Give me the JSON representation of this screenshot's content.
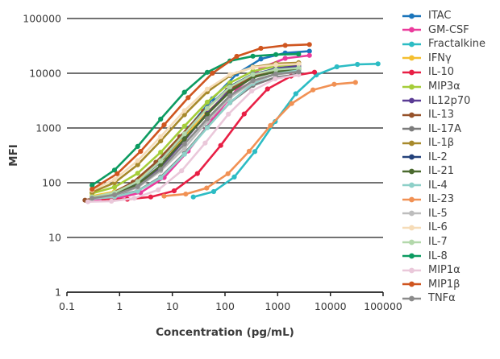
{
  "chart_data": {
    "type": "line",
    "title": "",
    "xlabel": "Concentration (pg/mL)",
    "ylabel": "MFI",
    "x_scale": "log",
    "y_scale": "log",
    "xlim": [
      0.1,
      100000
    ],
    "ylim": [
      1,
      100000
    ],
    "x_ticks": [
      0.1,
      1,
      10,
      100,
      1000,
      10000,
      100000
    ],
    "y_ticks": [
      1,
      10,
      100,
      1000,
      10000,
      100000
    ],
    "grid": "horizontal-only",
    "legend_position": "right",
    "marker": "circle",
    "text_color": "#3a3a3a",
    "axis_color": "#1f1f1f",
    "series": [
      {
        "name": "ITAC",
        "color": "#1b75bb",
        "x": [
          0.3,
          0.9,
          2.5,
          7,
          20,
          58,
          167,
          480,
          1390,
          4000
        ],
        "y": [
          54,
          67,
          115,
          295,
          990,
          3430,
          9700,
          18200,
          23500,
          25300
        ]
      },
      {
        "name": "GM-CSF",
        "color": "#eb3b9c",
        "x": [
          0.3,
          0.9,
          2.5,
          7,
          20,
          58,
          167,
          480,
          1390,
          4000
        ],
        "y": [
          49,
          52,
          66,
          124,
          380,
          1430,
          5030,
          12400,
          18700,
          21200
        ]
      },
      {
        "name": "Fractalkine",
        "color": "#2cbcc4",
        "x": [
          25,
          61,
          150,
          368,
          900,
          2210,
          5420,
          13290,
          32600,
          80000
        ],
        "y": [
          55,
          69,
          127,
          371,
          1310,
          4220,
          9300,
          13090,
          14490,
          14870
        ]
      },
      {
        "name": "IFNγ",
        "color": "#f4bf30",
        "x": [
          0.3,
          0.8,
          2.2,
          6,
          17,
          46,
          124,
          339,
          925,
          2500
        ],
        "y": [
          57,
          69,
          110,
          240,
          690,
          1950,
          4710,
          8510,
          11230,
          12400
        ]
      },
      {
        "name": "IL-10",
        "color": "#e81f45",
        "x": [
          0.5,
          1.4,
          3.9,
          10.8,
          30,
          83,
          231,
          643,
          1790,
          5000
        ],
        "y": [
          50,
          50,
          55,
          71,
          147,
          480,
          1800,
          5170,
          8840,
          10450
        ]
      },
      {
        "name": "MIP3α",
        "color": "#a5cd39",
        "x": [
          0.3,
          0.8,
          2.2,
          6,
          17,
          46,
          124,
          339,
          925,
          2500
        ],
        "y": [
          64,
          83,
          149,
          360,
          1080,
          2970,
          6680,
          10900,
          13500,
          14500
        ]
      },
      {
        "name": "IL12p70",
        "color": "#5a3b94",
        "x": [
          0.3,
          0.8,
          2.2,
          6,
          17,
          46,
          124,
          339,
          925,
          2500
        ],
        "y": [
          53,
          61,
          89,
          195,
          595,
          1850,
          4930,
          9330,
          12300,
          13500
        ]
      },
      {
        "name": "IL-13",
        "color": "#96522a",
        "x": [
          0.22,
          0.6,
          1.8,
          4.9,
          13.9,
          39,
          111,
          313,
          883,
          2500
        ],
        "y": [
          48,
          59,
          102,
          236,
          693,
          2020,
          4950,
          8500,
          10700,
          11600
        ]
      },
      {
        "name": "IL-17A",
        "color": "#7c7c7c",
        "x": [
          0.3,
          0.8,
          2.2,
          6,
          17,
          46,
          124,
          339,
          925,
          2500
        ],
        "y": [
          52,
          57,
          71,
          127,
          344,
          1040,
          2900,
          6000,
          8460,
          9520
        ]
      },
      {
        "name": "IL-1β",
        "color": "#a7892c",
        "x": [
          0.3,
          0.8,
          2.2,
          6,
          17,
          46,
          124,
          339,
          925,
          2500
        ],
        "y": [
          67,
          100,
          213,
          580,
          1750,
          4560,
          9050,
          13000,
          14970,
          15600
        ]
      },
      {
        "name": "IL-2",
        "color": "#24427b",
        "x": [
          0.3,
          0.8,
          2.2,
          6,
          17,
          46,
          124,
          339,
          925,
          2500
        ],
        "y": [
          54,
          64,
          103,
          244,
          774,
          2340,
          5730,
          9670,
          11890,
          12680
        ]
      },
      {
        "name": "IL-21",
        "color": "#4b6a2f",
        "x": [
          0.3,
          0.8,
          2.2,
          6,
          17,
          46,
          124,
          339,
          925,
          2500
        ],
        "y": [
          53,
          61,
          93,
          205,
          630,
          1780,
          4610,
          8350,
          10730,
          11600
        ]
      },
      {
        "name": "IL-4",
        "color": "#8ed0c8",
        "x": [
          0.3,
          0.8,
          2.2,
          6,
          17,
          46,
          124,
          339,
          925,
          2500
        ],
        "y": [
          51,
          55,
          70,
          123,
          330,
          1010,
          2930,
          6500,
          9750,
          11290
        ]
      },
      {
        "name": "IL-23",
        "color": "#f19154",
        "x": [
          7,
          18,
          45,
          114,
          288,
          729,
          1845,
          4670,
          11830,
          30000
        ],
        "y": [
          57,
          62,
          80,
          146,
          376,
          1110,
          2800,
          4960,
          6290,
          6790
        ]
      },
      {
        "name": "IL-5",
        "color": "#bdbdbd",
        "x": [
          0.3,
          0.8,
          2.2,
          6,
          17,
          46,
          124,
          339,
          925,
          2500
        ],
        "y": [
          52,
          59,
          82,
          164,
          429,
          1320,
          3570,
          7020,
          9530,
          10600
        ]
      },
      {
        "name": "IL-6",
        "color": "#f6dcb8",
        "x": [
          0.3,
          0.8,
          2.2,
          6,
          17,
          46,
          124,
          339,
          925,
          2500
        ],
        "y": [
          73,
          114,
          253,
          693,
          2070,
          5130,
          9450,
          12750,
          14250,
          14760
        ]
      },
      {
        "name": "IL-7",
        "color": "#b3d8ab",
        "x": [
          0.3,
          0.8,
          2.2,
          6,
          17,
          46,
          124,
          339,
          925,
          2500
        ],
        "y": [
          55,
          66,
          105,
          250,
          780,
          2300,
          5600,
          9500,
          11700,
          12500
        ]
      },
      {
        "name": "IL-8",
        "color": "#0c9b61",
        "x": [
          0.3,
          0.8,
          2.2,
          6,
          17,
          46,
          124,
          339,
          925,
          2500
        ],
        "y": [
          90,
          170,
          460,
          1450,
          4500,
          10400,
          16800,
          20500,
          21900,
          22400
        ]
      },
      {
        "name": "MIP1α",
        "color": "#eac8da",
        "x": [
          0.25,
          0.7,
          1.9,
          5.4,
          15,
          42,
          116,
          322,
          900,
          2500
        ],
        "y": [
          45,
          46,
          52,
          74,
          165,
          530,
          1790,
          4730,
          7900,
          9400
        ]
      },
      {
        "name": "MIP1β",
        "color": "#cf551f",
        "x": [
          0.3,
          0.9,
          2.5,
          7,
          20,
          58,
          167,
          480,
          1390,
          4000
        ],
        "y": [
          76,
          146,
          373,
          1140,
          3590,
          10050,
          20350,
          28600,
          32300,
          33500
        ]
      },
      {
        "name": "TNFα",
        "color": "#8b8b8b",
        "x": [
          0.3,
          0.8,
          2.2,
          6,
          17,
          46,
          124,
          339,
          925,
          2500
        ],
        "y": [
          52,
          60,
          85,
          175,
          510,
          1480,
          3880,
          7330,
          9690,
          10600
        ]
      }
    ]
  }
}
